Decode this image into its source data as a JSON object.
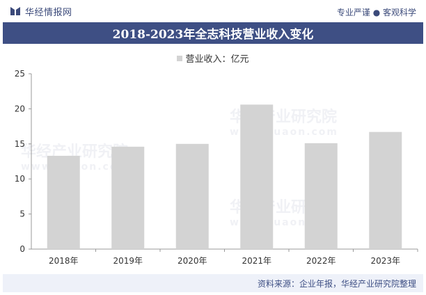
{
  "header": {
    "logo_text": "华经情报网",
    "slogan": "专业严谨 ● 客观科学"
  },
  "title": "2018-2023年全志科技营业收入变化",
  "legend": {
    "label": "营业收入：亿元",
    "color": "#d3d3d3"
  },
  "chart_data": {
    "type": "bar",
    "categories": [
      "2018年",
      "2019年",
      "2020年",
      "2021年",
      "2022年",
      "2023年"
    ],
    "series": [
      {
        "name": "营业收入：亿元",
        "values": [
          13.3,
          14.6,
          15.0,
          20.6,
          15.1,
          16.7
        ],
        "color": "#d3d3d3"
      }
    ],
    "ylim": [
      0,
      25
    ],
    "yticks": [
      0,
      5,
      10,
      15,
      20,
      25
    ],
    "grid": false
  },
  "footer": {
    "source": "资料来源：企业年报，华经产业研究院整理"
  },
  "watermark": {
    "cn": "华经产业研究院",
    "en": "www.huaon.com"
  }
}
